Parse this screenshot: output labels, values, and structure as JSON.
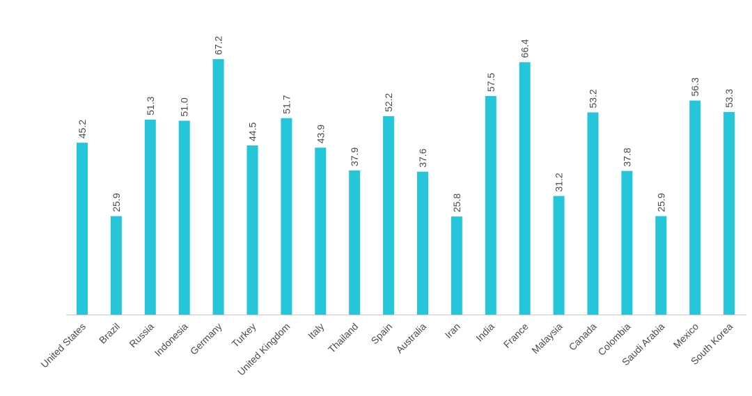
{
  "chart_data": {
    "type": "bar",
    "title": "",
    "xlabel": "",
    "ylabel": "",
    "ylim": [
      0,
      70
    ],
    "grid": false,
    "legend": "none",
    "bar_color": "#26C6DA",
    "axis_color": "#c8c8c8",
    "text_color": "#4a4a4a",
    "categories": [
      "United States",
      "Brazil",
      "Russia",
      "Indonesia",
      "Germany",
      "Turkey",
      "United Kingdom",
      "Italy",
      "Thailand",
      "Spain",
      "Australia",
      "Iran",
      "India",
      "France",
      "Malaysia",
      "Canada",
      "Colombia",
      "Saudi Arabia",
      "Mexico",
      "South Korea"
    ],
    "values": [
      45.2,
      25.9,
      51.3,
      51.0,
      67.2,
      44.5,
      51.7,
      43.9,
      37.9,
      52.2,
      37.6,
      25.8,
      57.5,
      66.4,
      31.2,
      53.2,
      37.8,
      25.9,
      56.3,
      53.3
    ],
    "value_labels": [
      "45.2",
      "25.9",
      "51.3",
      "51.0",
      "67.2",
      "44.5",
      "51.7",
      "43.9",
      "37.9",
      "52.2",
      "37.6",
      "25.8",
      "57.5",
      "66.4",
      "31.2",
      "53.2",
      "37.8",
      "25.9",
      "56.3",
      "53.3"
    ]
  }
}
